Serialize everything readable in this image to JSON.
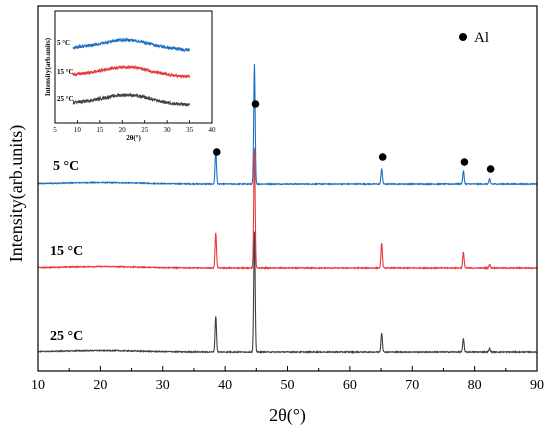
{
  "chart_data": [
    {
      "type": "line",
      "title": "",
      "xlabel": "2θ(°)",
      "ylabel": "Intensity(arb.units)",
      "xlim": [
        10,
        90
      ],
      "xticks": [
        10,
        20,
        30,
        40,
        50,
        60,
        70,
        80,
        90
      ],
      "yticks_shown": false,
      "legend": {
        "marker": "filled-circle",
        "label": "Al",
        "placement": "top-right"
      },
      "series": [
        {
          "name": "5 °C",
          "color": "#1f6fc5",
          "baseline_rel": 0.0,
          "peaks": [
            [
              38.5,
              0.28
            ],
            [
              44.7,
              1.0
            ],
            [
              65.1,
              0.13
            ],
            [
              78.2,
              0.11
            ],
            [
              82.4,
              0.04
            ]
          ]
        },
        {
          "name": "15 °C",
          "color": "#e8383d",
          "baseline_rel": 0.0,
          "peaks": [
            [
              38.5,
              0.29
            ],
            [
              44.7,
              1.0
            ],
            [
              65.1,
              0.21
            ],
            [
              78.2,
              0.13
            ],
            [
              82.4,
              0.03
            ]
          ]
        },
        {
          "name": "25 °C",
          "color": "#404040",
          "baseline_rel": 0.0,
          "peaks": [
            [
              38.5,
              0.3
            ],
            [
              44.7,
              1.0
            ],
            [
              65.1,
              0.16
            ],
            [
              78.2,
              0.11
            ],
            [
              82.4,
              0.03
            ]
          ]
        }
      ],
      "al_peak_markers_x": [
        38.5,
        44.7,
        65.1,
        78.2,
        82.4
      ]
    },
    {
      "type": "line",
      "title": "",
      "xlabel": "2θ(°)",
      "ylabel": "Intensity(arb.units)",
      "xlim": [
        5,
        40
      ],
      "xticks": [
        5,
        10,
        15,
        20,
        25,
        30,
        35,
        40
      ],
      "placement": "inset-top-left",
      "series": [
        {
          "name": "5 °C",
          "color": "#1f6fc5",
          "hump_center": 21,
          "x_range": [
            9,
            35
          ]
        },
        {
          "name": "15 °C",
          "color": "#e8383d",
          "hump_center": 21,
          "x_range": [
            9,
            35
          ]
        },
        {
          "name": "25 °C",
          "color": "#404040",
          "hump_center": 21,
          "x_range": [
            9,
            35
          ]
        }
      ]
    }
  ]
}
